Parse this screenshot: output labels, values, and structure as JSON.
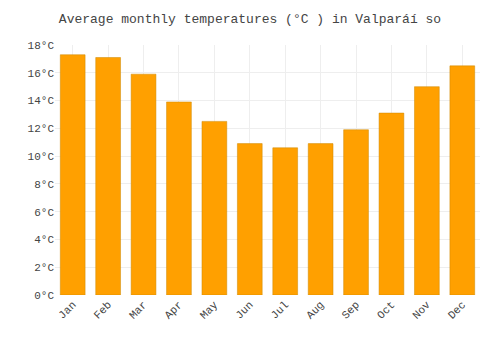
{
  "chart_data": {
    "type": "bar",
    "title": "Average monthly temperatures (°C ) in Valparáí so",
    "categories": [
      "Jan",
      "Feb",
      "Mar",
      "Apr",
      "May",
      "Jun",
      "Jul",
      "Aug",
      "Sep",
      "Oct",
      "Nov",
      "Dec"
    ],
    "values": [
      17.3,
      17.1,
      15.9,
      13.9,
      12.5,
      10.9,
      10.6,
      10.9,
      11.9,
      13.1,
      15.0,
      16.5
    ],
    "color": "#FFA000",
    "ylim": [
      0,
      18
    ],
    "yticks": [
      {
        "value": 0,
        "label": "0°C"
      },
      {
        "value": 2,
        "label": "2°C"
      },
      {
        "value": 4,
        "label": "4°C"
      },
      {
        "value": 6,
        "label": "6°C"
      },
      {
        "value": 8,
        "label": "8°C"
      },
      {
        "value": 10,
        "label": "10°C"
      },
      {
        "value": 12,
        "label": "12°C"
      },
      {
        "value": 14,
        "label": "14°C"
      },
      {
        "value": 16,
        "label": "16°C"
      },
      {
        "value": 18,
        "label": "18°C"
      }
    ],
    "grid": true
  }
}
